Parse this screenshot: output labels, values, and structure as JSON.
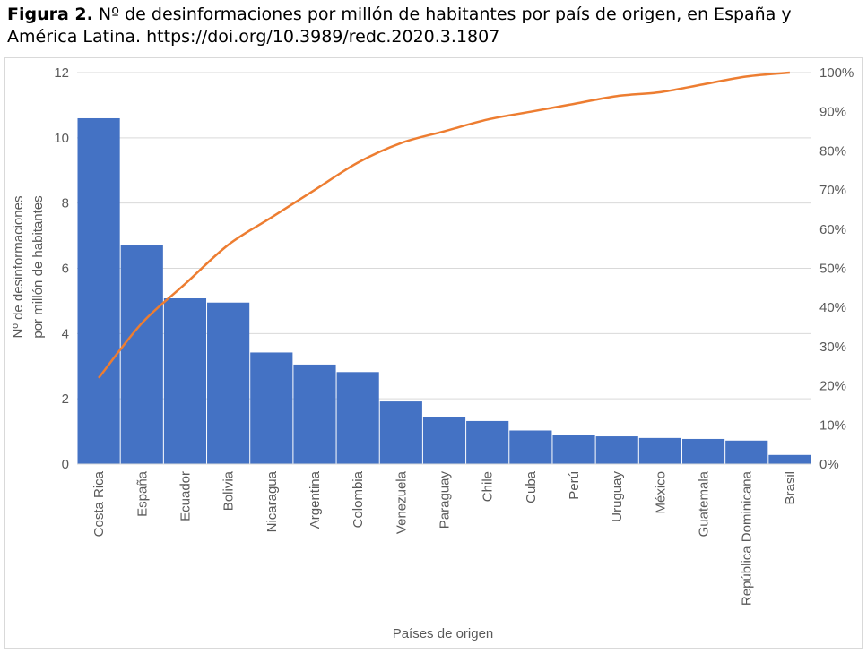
{
  "caption": {
    "label": "Figura 2.",
    "text": " Nº de desinformaciones por millón de habitantes por país de origen, en España y América Latina. https://doi.org/10.3989/redc.2020.3.1807"
  },
  "chart_data": {
    "type": "bar",
    "categories": [
      "Costa Rica",
      "España",
      "Ecuador",
      "Bolivia",
      "Nicaragua",
      "Argentina",
      "Colombia",
      "Venezuela",
      "Paraguay",
      "Chile",
      "Cuba",
      "Perú",
      "Uruguay",
      "México",
      "Guatemala",
      "República Dominicana",
      "Brasil"
    ],
    "series": [
      {
        "type": "bar",
        "axis": "left",
        "color": "#4472c4",
        "values": [
          10.6,
          6.7,
          5.08,
          4.95,
          3.42,
          3.05,
          2.82,
          1.92,
          1.44,
          1.32,
          1.03,
          0.88,
          0.85,
          0.8,
          0.77,
          0.72,
          0.28
        ]
      },
      {
        "type": "line",
        "axis": "right",
        "color": "#ed7d31",
        "values": [
          0.22,
          0.36,
          0.46,
          0.56,
          0.63,
          0.7,
          0.77,
          0.82,
          0.85,
          0.88,
          0.9,
          0.92,
          0.94,
          0.95,
          0.97,
          0.99,
          1.0
        ]
      }
    ],
    "ylim": [
      0,
      12
    ],
    "y_ticks": [
      "0",
      "2",
      "4",
      "6",
      "8",
      "10",
      "12"
    ],
    "y2lim": [
      0,
      1
    ],
    "y2_ticks": [
      "0%",
      "10%",
      "20%",
      "30%",
      "40%",
      "50%",
      "60%",
      "70%",
      "80%",
      "90%",
      "100%"
    ],
    "ylabel": [
      "Nº de desinformaciones",
      "por millón de habitantes"
    ],
    "xlabel": "Países de origen",
    "grid": true
  }
}
